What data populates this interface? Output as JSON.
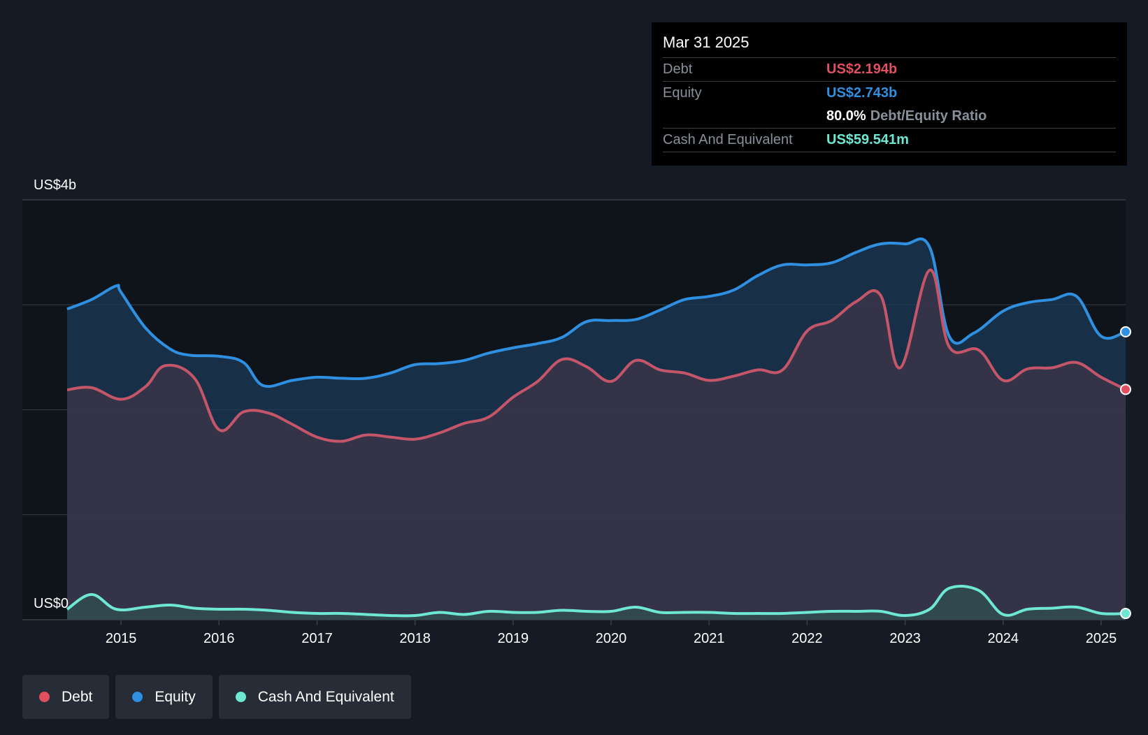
{
  "colors": {
    "background": "#151b24",
    "plot_bg": "#0f141b",
    "debt": "#e0505f",
    "debt_line": "#c5566a",
    "equity": "#2f8fe0",
    "cash": "#6ee7d3",
    "grid": "#3a3f47"
  },
  "tooltip": {
    "date": "Mar 31 2025",
    "debt_label": "Debt",
    "debt_value": "US$2.194b",
    "equity_label": "Equity",
    "equity_value": "US$2.743b",
    "ratio_value": "80.0%",
    "ratio_label": "Debt/Equity Ratio",
    "cash_label": "Cash And Equivalent",
    "cash_value": "US$59.541m"
  },
  "legend": [
    {
      "label": "Debt",
      "color": "#e0505f"
    },
    {
      "label": "Equity",
      "color": "#2f8fe0"
    },
    {
      "label": "Cash And Equivalent",
      "color": "#6ee7d3"
    }
  ],
  "chart_data": {
    "type": "area",
    "title": "",
    "xlabel": "",
    "ylabel": "",
    "y_top_label": "US$4b",
    "y_bottom_label": "US$0",
    "ylim": [
      0,
      4.0
    ],
    "xlim": [
      2014.45,
      2025.25
    ],
    "x_ticks": [
      {
        "value": 2015,
        "label": "2015"
      },
      {
        "value": 2016,
        "label": "2016"
      },
      {
        "value": 2017,
        "label": "2017"
      },
      {
        "value": 2018,
        "label": "2018"
      },
      {
        "value": 2019,
        "label": "2019"
      },
      {
        "value": 2020,
        "label": "2020"
      },
      {
        "value": 2021,
        "label": "2021"
      },
      {
        "value": 2022,
        "label": "2022"
      },
      {
        "value": 2023,
        "label": "2023"
      },
      {
        "value": 2024,
        "label": "2024"
      },
      {
        "value": 2025,
        "label": "2025"
      }
    ],
    "gridlines": [
      0,
      1,
      2,
      3,
      4
    ],
    "series": [
      {
        "name": "Equity",
        "x": [
          2014.45,
          2014.7,
          2014.95,
          2015.0,
          2015.25,
          2015.5,
          2015.7,
          2016.0,
          2016.25,
          2016.45,
          2016.75,
          2017.0,
          2017.25,
          2017.5,
          2017.75,
          2018.0,
          2018.25,
          2018.5,
          2018.75,
          2019.0,
          2019.25,
          2019.5,
          2019.75,
          2020.0,
          2020.25,
          2020.5,
          2020.75,
          2021.0,
          2021.25,
          2021.5,
          2021.75,
          2022.0,
          2022.25,
          2022.5,
          2022.75,
          2023.0,
          2023.25,
          2023.45,
          2023.7,
          2024.0,
          2024.25,
          2024.5,
          2024.75,
          2025.0,
          2025.25
        ],
        "values": [
          2.96,
          3.05,
          3.18,
          3.12,
          2.78,
          2.58,
          2.52,
          2.51,
          2.45,
          2.23,
          2.28,
          2.31,
          2.3,
          2.3,
          2.35,
          2.43,
          2.44,
          2.47,
          2.54,
          2.59,
          2.63,
          2.69,
          2.84,
          2.85,
          2.86,
          2.95,
          3.05,
          3.08,
          3.14,
          3.28,
          3.38,
          3.38,
          3.4,
          3.5,
          3.58,
          3.58,
          3.55,
          2.7,
          2.73,
          2.94,
          3.02,
          3.05,
          3.08,
          2.7,
          2.743
        ]
      },
      {
        "name": "Debt",
        "x": [
          2014.45,
          2014.7,
          2015.0,
          2015.25,
          2015.45,
          2015.75,
          2016.0,
          2016.25,
          2016.5,
          2016.75,
          2017.0,
          2017.25,
          2017.5,
          2017.75,
          2018.0,
          2018.25,
          2018.5,
          2018.75,
          2019.0,
          2019.25,
          2019.5,
          2019.75,
          2020.0,
          2020.25,
          2020.5,
          2020.75,
          2021.0,
          2021.25,
          2021.5,
          2021.75,
          2022.0,
          2022.25,
          2022.5,
          2022.75,
          2022.95,
          2023.25,
          2023.45,
          2023.75,
          2024.0,
          2024.25,
          2024.5,
          2024.75,
          2025.0,
          2025.25
        ],
        "values": [
          2.19,
          2.21,
          2.1,
          2.22,
          2.42,
          2.3,
          1.81,
          1.98,
          1.97,
          1.86,
          1.74,
          1.7,
          1.76,
          1.74,
          1.72,
          1.78,
          1.87,
          1.93,
          2.12,
          2.27,
          2.48,
          2.41,
          2.27,
          2.47,
          2.38,
          2.35,
          2.28,
          2.32,
          2.38,
          2.38,
          2.75,
          2.85,
          3.03,
          3.09,
          2.4,
          3.33,
          2.6,
          2.57,
          2.28,
          2.39,
          2.4,
          2.45,
          2.31,
          2.194
        ]
      },
      {
        "name": "Cash And Equivalent",
        "x": [
          2014.45,
          2014.7,
          2014.95,
          2015.25,
          2015.5,
          2015.75,
          2016.0,
          2016.25,
          2016.5,
          2016.75,
          2017.0,
          2017.25,
          2017.5,
          2017.75,
          2018.0,
          2018.25,
          2018.5,
          2018.75,
          2019.0,
          2019.25,
          2019.5,
          2019.75,
          2020.0,
          2020.25,
          2020.5,
          2020.75,
          2021.0,
          2021.25,
          2021.5,
          2021.75,
          2022.0,
          2022.25,
          2022.5,
          2022.75,
          2023.0,
          2023.25,
          2023.45,
          2023.75,
          2024.0,
          2024.25,
          2024.5,
          2024.75,
          2025.0,
          2025.25
        ],
        "values": [
          0.1,
          0.24,
          0.1,
          0.12,
          0.14,
          0.11,
          0.1,
          0.1,
          0.09,
          0.07,
          0.06,
          0.06,
          0.05,
          0.04,
          0.04,
          0.07,
          0.05,
          0.08,
          0.07,
          0.07,
          0.09,
          0.08,
          0.08,
          0.12,
          0.07,
          0.07,
          0.07,
          0.06,
          0.06,
          0.06,
          0.07,
          0.08,
          0.08,
          0.08,
          0.04,
          0.1,
          0.3,
          0.28,
          0.05,
          0.1,
          0.11,
          0.12,
          0.06,
          0.0595
        ]
      }
    ]
  }
}
